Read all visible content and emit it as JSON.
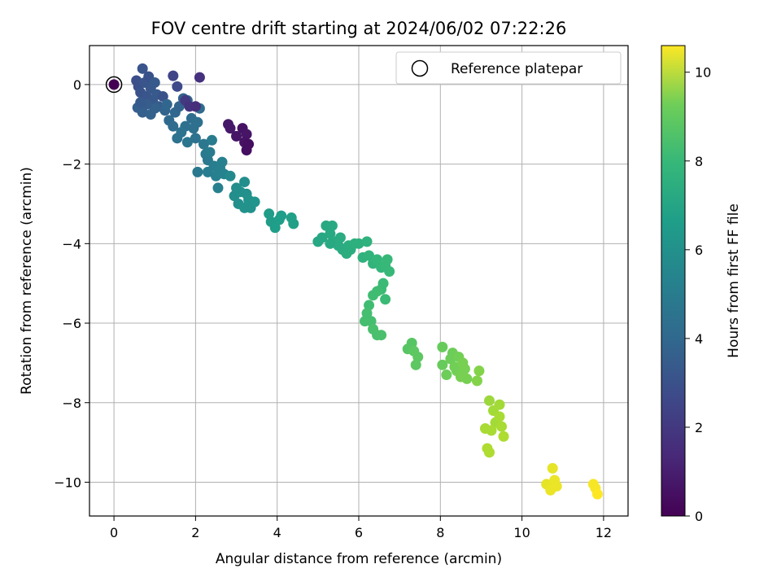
{
  "chart_data": {
    "type": "scatter",
    "title": "FOV centre drift starting at 2024/06/02 07:22:26",
    "xlabel": "Angular distance from reference (arcmin)",
    "ylabel": "Rotation from reference (arcmin)",
    "xlim": [
      -0.6,
      12.6
    ],
    "ylim": [
      -10.85,
      0.98
    ],
    "xticks": [
      0,
      2,
      4,
      6,
      8,
      10,
      12
    ],
    "yticks": [
      0,
      -2,
      -4,
      -6,
      -8,
      -10
    ],
    "grid": true,
    "legend": {
      "position": "top-right",
      "entries": [
        "Reference platepar"
      ]
    },
    "reference_point": {
      "x": 0,
      "y": 0,
      "label": "Reference platepar"
    },
    "colorbar": {
      "label": "Hours from first FF file",
      "min": 0,
      "max": 10.6,
      "ticks": [
        0,
        2,
        4,
        6,
        8,
        10
      ],
      "colormap": "viridis"
    },
    "points": [
      [
        0.0,
        0.0,
        0.0
      ],
      [
        0.55,
        0.1,
        2.6
      ],
      [
        0.6,
        -0.05,
        2.6
      ],
      [
        0.65,
        -0.2,
        2.7
      ],
      [
        0.7,
        0.4,
        2.8
      ],
      [
        0.75,
        0.05,
        2.8
      ],
      [
        0.8,
        -0.3,
        2.8
      ],
      [
        0.85,
        0.2,
        2.7
      ],
      [
        0.9,
        -0.1,
        2.9
      ],
      [
        0.95,
        -0.4,
        2.9
      ],
      [
        1.0,
        0.05,
        3.0
      ],
      [
        1.05,
        -0.25,
        3.0
      ],
      [
        1.1,
        -0.55,
        3.1
      ],
      [
        0.58,
        -0.58,
        3.2
      ],
      [
        0.7,
        -0.7,
        3.2
      ],
      [
        0.9,
        -0.75,
        3.3
      ],
      [
        1.0,
        -0.6,
        3.3
      ],
      [
        1.2,
        -0.3,
        2.7
      ],
      [
        1.25,
        -0.65,
        3.4
      ],
      [
        0.8,
        -0.5,
        3.1
      ],
      [
        0.65,
        -0.45,
        3.0
      ],
      [
        1.45,
        0.22,
        2.2
      ],
      [
        1.55,
        -0.05,
        2.4
      ],
      [
        1.3,
        -0.5,
        3.5
      ],
      [
        1.35,
        -0.9,
        3.6
      ],
      [
        1.45,
        -1.05,
        3.7
      ],
      [
        1.5,
        -0.7,
        3.5
      ],
      [
        1.6,
        -0.55,
        3.4
      ],
      [
        1.7,
        -0.35,
        3.3
      ],
      [
        1.8,
        -0.4,
        3.4
      ],
      [
        1.9,
        -0.85,
        3.8
      ],
      [
        1.95,
        -1.1,
        3.9
      ],
      [
        2.05,
        -0.95,
        3.9
      ],
      [
        2.1,
        -0.6,
        3.7
      ],
      [
        1.75,
        -1.05,
        3.9
      ],
      [
        1.65,
        -1.2,
        4.0
      ],
      [
        1.55,
        -1.35,
        4.0
      ],
      [
        1.8,
        -1.45,
        4.1
      ],
      [
        2.0,
        -1.35,
        4.0
      ],
      [
        2.05,
        -2.2,
        4.3
      ],
      [
        1.75,
        -0.4,
        1.8
      ],
      [
        1.85,
        -0.55,
        1.6
      ],
      [
        2.0,
        -0.55,
        1.4
      ],
      [
        2.1,
        0.18,
        1.5
      ],
      [
        2.8,
        -1.0,
        0.7
      ],
      [
        2.85,
        -1.1,
        0.7
      ],
      [
        3.0,
        -1.3,
        0.6
      ],
      [
        3.15,
        -1.1,
        0.5
      ],
      [
        3.25,
        -1.25,
        0.6
      ],
      [
        3.2,
        -1.45,
        0.5
      ],
      [
        3.25,
        -1.65,
        0.4
      ],
      [
        3.3,
        -1.5,
        0.4
      ],
      [
        2.2,
        -1.5,
        4.2
      ],
      [
        2.25,
        -1.75,
        4.3
      ],
      [
        2.3,
        -1.9,
        4.3
      ],
      [
        2.35,
        -1.7,
        4.4
      ],
      [
        2.4,
        -1.4,
        4.4
      ],
      [
        2.45,
        -2.05,
        4.5
      ],
      [
        2.5,
        -2.3,
        4.6
      ],
      [
        2.55,
        -2.6,
        4.6
      ],
      [
        2.6,
        -2.1,
        4.6
      ],
      [
        2.7,
        -2.25,
        4.7
      ],
      [
        2.65,
        -1.95,
        4.6
      ],
      [
        2.3,
        -2.2,
        4.5
      ],
      [
        2.85,
        -2.3,
        5.0
      ],
      [
        2.95,
        -2.8,
        5.2
      ],
      [
        3.05,
        -3.0,
        5.3
      ],
      [
        3.1,
        -2.7,
        5.3
      ],
      [
        3.2,
        -2.45,
        5.2
      ],
      [
        3.25,
        -2.75,
        5.3
      ],
      [
        3.3,
        -2.9,
        5.4
      ],
      [
        3.35,
        -3.1,
        5.4
      ],
      [
        3.45,
        -2.95,
        5.5
      ],
      [
        3.2,
        -3.1,
        5.4
      ],
      [
        3.0,
        -2.6,
        5.2
      ],
      [
        3.8,
        -3.25,
        5.8
      ],
      [
        3.85,
        -3.45,
        5.8
      ],
      [
        3.95,
        -3.6,
        5.9
      ],
      [
        4.05,
        -3.4,
        5.9
      ],
      [
        4.1,
        -3.3,
        5.9
      ],
      [
        4.35,
        -3.35,
        6.0
      ],
      [
        4.4,
        -3.5,
        6.0
      ],
      [
        5.0,
        -3.95,
        6.3
      ],
      [
        5.1,
        -3.85,
        6.3
      ],
      [
        5.2,
        -3.55,
        6.4
      ],
      [
        5.3,
        -3.75,
        6.4
      ],
      [
        5.35,
        -3.55,
        6.4
      ],
      [
        5.4,
        -3.95,
        6.5
      ],
      [
        5.5,
        -4.05,
        6.5
      ],
      [
        5.55,
        -3.85,
        6.5
      ],
      [
        5.6,
        -4.15,
        6.5
      ],
      [
        5.7,
        -4.25,
        6.6
      ],
      [
        5.75,
        -4.05,
        6.6
      ],
      [
        5.8,
        -4.15,
        6.6
      ],
      [
        5.9,
        -4.0,
        6.7
      ],
      [
        6.0,
        -4.0,
        6.7
      ],
      [
        6.1,
        -4.35,
        6.8
      ],
      [
        6.2,
        -3.95,
        6.8
      ],
      [
        5.3,
        -4.0,
        6.4
      ],
      [
        6.25,
        -4.3,
        6.9
      ],
      [
        6.35,
        -4.5,
        6.9
      ],
      [
        6.45,
        -4.4,
        7.0
      ],
      [
        6.55,
        -4.6,
        7.0
      ],
      [
        6.65,
        -4.55,
        7.1
      ],
      [
        6.7,
        -4.4,
        7.1
      ],
      [
        6.75,
        -4.7,
        7.1
      ],
      [
        6.6,
        -5.0,
        7.2
      ],
      [
        6.55,
        -5.15,
        7.2
      ],
      [
        6.65,
        -5.4,
        7.2
      ],
      [
        6.45,
        -5.2,
        7.3
      ],
      [
        6.35,
        -5.3,
        7.3
      ],
      [
        6.25,
        -5.55,
        7.3
      ],
      [
        6.2,
        -5.75,
        7.4
      ],
      [
        6.15,
        -5.95,
        7.4
      ],
      [
        6.3,
        -5.95,
        7.4
      ],
      [
        6.35,
        -6.15,
        7.5
      ],
      [
        6.45,
        -6.3,
        7.5
      ],
      [
        6.55,
        -6.3,
        7.5
      ],
      [
        7.2,
        -6.65,
        7.8
      ],
      [
        7.3,
        -6.5,
        7.8
      ],
      [
        7.35,
        -6.7,
        7.9
      ],
      [
        7.45,
        -6.85,
        7.9
      ],
      [
        7.4,
        -7.05,
        7.9
      ],
      [
        8.05,
        -6.6,
        8.1
      ],
      [
        8.05,
        -7.05,
        8.1
      ],
      [
        8.15,
        -7.3,
        8.2
      ],
      [
        8.25,
        -6.9,
        8.2
      ],
      [
        8.3,
        -6.75,
        8.2
      ],
      [
        8.35,
        -7.1,
        8.3
      ],
      [
        8.4,
        -7.2,
        8.3
      ],
      [
        8.45,
        -6.85,
        8.3
      ],
      [
        8.5,
        -7.35,
        8.4
      ],
      [
        8.55,
        -7.0,
        8.4
      ],
      [
        8.65,
        -7.4,
        8.4
      ],
      [
        8.6,
        -7.15,
        8.4
      ],
      [
        8.9,
        -7.45,
        8.6
      ],
      [
        8.95,
        -7.2,
        8.6
      ],
      [
        9.2,
        -7.95,
        9.0
      ],
      [
        9.3,
        -8.2,
        9.1
      ],
      [
        9.35,
        -8.5,
        9.1
      ],
      [
        9.25,
        -8.7,
        9.2
      ],
      [
        9.45,
        -8.05,
        9.1
      ],
      [
        9.45,
        -8.35,
        9.2
      ],
      [
        9.5,
        -8.6,
        9.2
      ],
      [
        9.55,
        -8.85,
        9.3
      ],
      [
        9.1,
        -8.65,
        9.2
      ],
      [
        9.15,
        -9.15,
        9.3
      ],
      [
        9.2,
        -9.25,
        9.3
      ],
      [
        10.6,
        -10.05,
        10.2
      ],
      [
        10.7,
        -10.2,
        10.3
      ],
      [
        10.75,
        -9.65,
        10.2
      ],
      [
        10.8,
        -9.95,
        10.3
      ],
      [
        10.85,
        -10.1,
        10.3
      ],
      [
        11.75,
        -10.05,
        10.5
      ],
      [
        11.8,
        -10.15,
        10.5
      ],
      [
        11.85,
        -10.3,
        10.6
      ]
    ]
  }
}
